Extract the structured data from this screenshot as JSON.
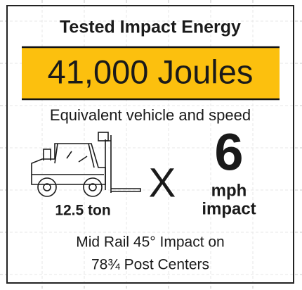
{
  "header": {
    "title": "Tested Impact Energy",
    "energy": "41,000 Joules",
    "subtitle": "Equivalent vehicle and speed"
  },
  "vehicle": {
    "weight": "12.5 ton"
  },
  "operator": "X",
  "speed": {
    "value": "6",
    "unit": "mph",
    "label": "impact"
  },
  "footer": {
    "line1": "Mid Rail 45° Impact on",
    "line2": "78¾ Post Centers"
  }
}
